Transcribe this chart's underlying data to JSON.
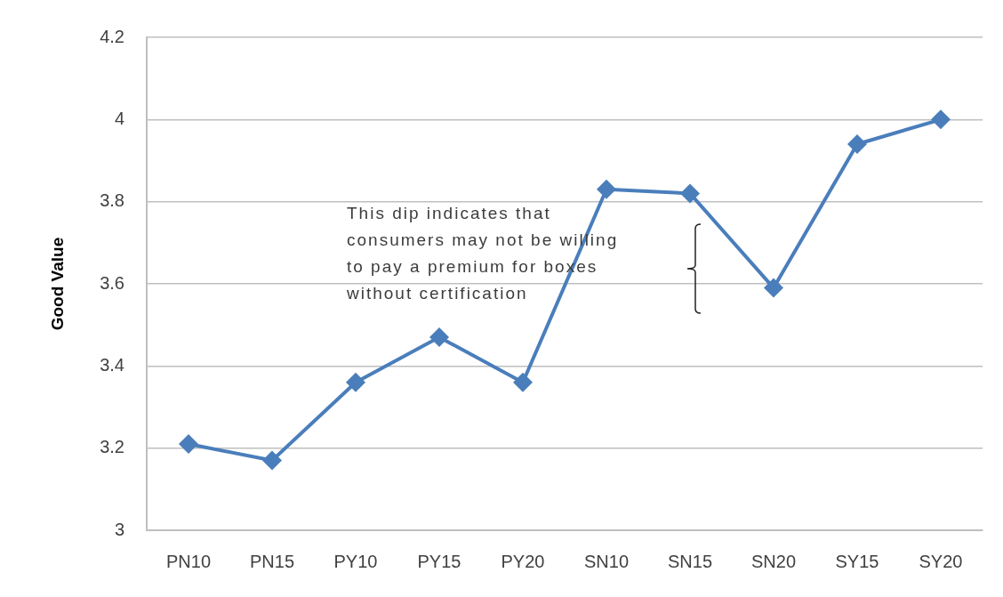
{
  "chart_data": {
    "type": "line",
    "ylabel": "Good Value",
    "categories": [
      "PN10",
      "PN15",
      "PY10",
      "PY15",
      "PY20",
      "SN10",
      "SN15",
      "SN20",
      "SY15",
      "SY20"
    ],
    "series": [
      {
        "color": "#4a7ebb",
        "values": [
          3.21,
          3.17,
          3.36,
          3.47,
          3.36,
          3.83,
          3.82,
          3.59,
          3.94,
          4.0
        ]
      }
    ],
    "ylim": [
      3,
      4.2
    ],
    "yticks": [
      3,
      3.2,
      3.4,
      3.6,
      3.8,
      4,
      4.2
    ],
    "grid": "y",
    "marker": "diamond",
    "line_style": "solid",
    "annotations": [
      "This dip indicates that consumers may not be willing to pay a premium for boxes without certification"
    ]
  }
}
